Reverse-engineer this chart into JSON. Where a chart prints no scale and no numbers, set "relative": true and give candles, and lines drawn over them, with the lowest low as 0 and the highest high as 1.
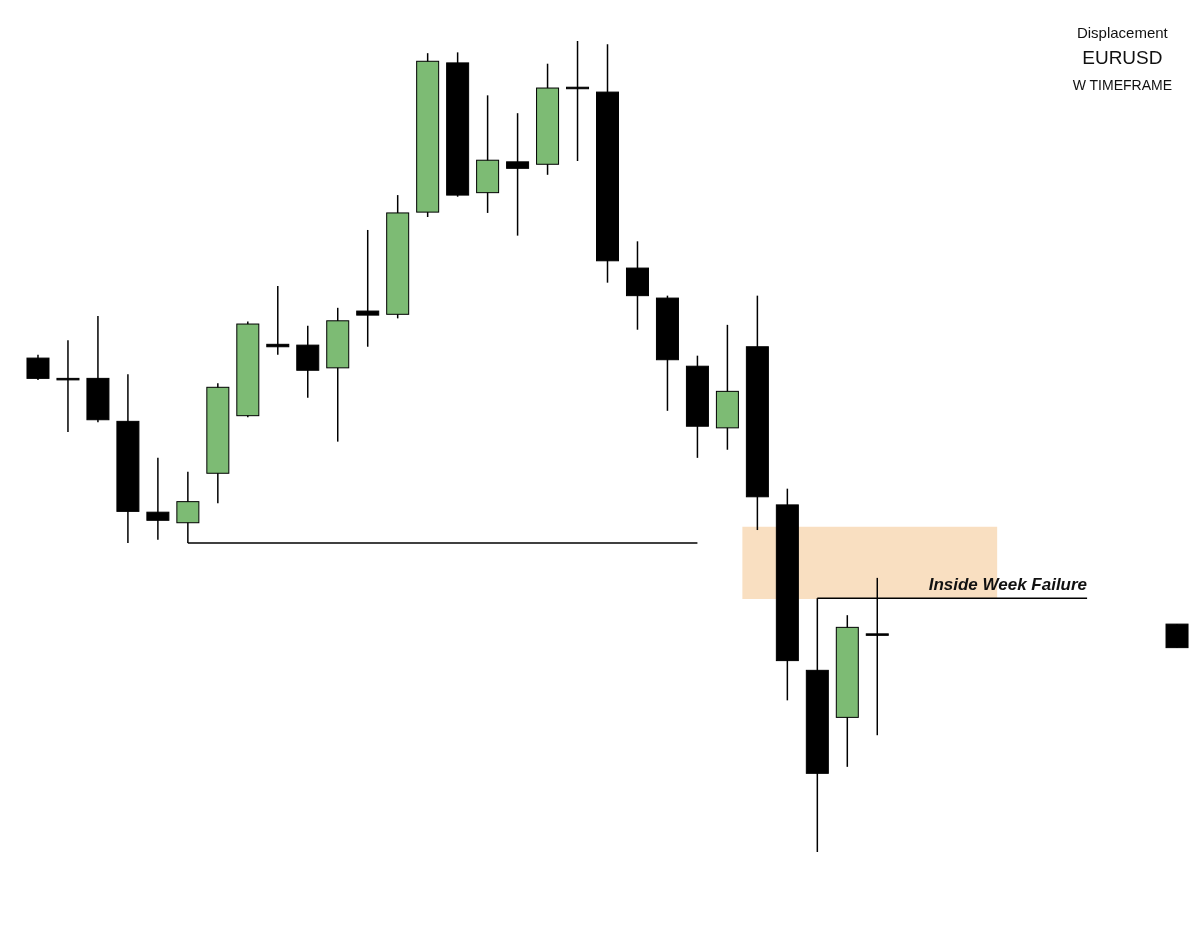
{
  "chart_data": {
    "type": "candlestick",
    "title": "EURUSD",
    "subtitle": "W TIMEFRAME",
    "relative": true,
    "annotations": [
      "Displacement",
      {
        "text": "Inside Week Failure",
        "y": 0.313
      }
    ],
    "categories": [
      null,
      null,
      null,
      null,
      null,
      null,
      null,
      null,
      null,
      null,
      null,
      null,
      null,
      null,
      null,
      null,
      null,
      null,
      null,
      null,
      null,
      null,
      null,
      null,
      null,
      null,
      null,
      null,
      null,
      null,
      null,
      null,
      null,
      null,
      null,
      null,
      null,
      null,
      null
    ],
    "ohlc": [
      [
        0.609,
        0.613,
        0.582,
        0.584
      ],
      [
        0.584,
        0.631,
        0.518,
        0.583
      ],
      [
        0.584,
        0.661,
        0.53,
        0.533
      ],
      [
        0.531,
        0.589,
        0.381,
        0.42
      ],
      [
        0.419,
        0.486,
        0.385,
        0.409
      ],
      [
        0.406,
        0.469,
        0.381,
        0.432
      ],
      [
        0.467,
        0.578,
        0.43,
        0.573
      ],
      [
        0.538,
        0.654,
        0.536,
        0.651
      ],
      [
        0.626,
        0.698,
        0.613,
        0.623
      ],
      [
        0.625,
        0.649,
        0.56,
        0.594
      ],
      [
        0.597,
        0.671,
        0.506,
        0.655
      ],
      [
        0.667,
        0.767,
        0.623,
        0.662
      ],
      [
        0.663,
        0.81,
        0.658,
        0.788
      ],
      [
        0.789,
        0.985,
        0.783,
        0.975
      ],
      [
        0.973,
        0.986,
        0.808,
        0.81
      ],
      [
        0.813,
        0.933,
        0.788,
        0.853
      ],
      [
        0.851,
        0.911,
        0.76,
        0.843
      ],
      [
        0.848,
        0.972,
        0.835,
        0.942
      ],
      [
        0.943,
        1,
        0.852,
        0.942
      ],
      [
        0.937,
        0.996,
        0.702,
        0.729
      ],
      [
        0.72,
        0.753,
        0.644,
        0.686
      ],
      [
        0.683,
        0.686,
        0.544,
        0.607
      ],
      [
        0.599,
        0.612,
        0.486,
        0.525
      ],
      [
        0.523,
        0.65,
        0.496,
        0.568
      ],
      [
        0.623,
        0.686,
        0.397,
        0.438
      ],
      [
        0.428,
        0.448,
        0.187,
        0.236
      ],
      [
        0.224,
        0.313,
        0,
        0.097
      ],
      [
        0.166,
        0.292,
        0.105,
        0.277
      ],
      [
        0.269,
        0.338,
        0.144,
        0.268
      ],
      null,
      null,
      null,
      null,
      null,
      null,
      null,
      null,
      null,
      [
        0.281,
        0.281,
        0.252,
        0.252
      ]
    ],
    "colors": [
      "#000000",
      "#000000",
      "#000000",
      "#000000",
      "#000000",
      "#7dbb74",
      "#7dbb74",
      "#7dbb74",
      "#000000",
      "#000000",
      "#7dbb74",
      "#000000",
      "#7dbb74",
      "#7dbb74",
      "#000000",
      "#7dbb74",
      "#000000",
      "#7dbb74",
      "#000000",
      "#000000",
      "#000000",
      "#000000",
      "#000000",
      "#7dbb74",
      "#000000",
      "#000000",
      "#000000",
      "#7dbb74",
      "#000000",
      null,
      null,
      null,
      null,
      null,
      null,
      null,
      null,
      null,
      "#000000"
    ],
    "series": [
      {
        "type": "line",
        "color": "#000000",
        "values": [
          null,
          null,
          null,
          null,
          null,
          0.381,
          null,
          null,
          null,
          null,
          null,
          null,
          null,
          null,
          null,
          null,
          null,
          null,
          null,
          null,
          null,
          null,
          0.381,
          null,
          null,
          null,
          null,
          null,
          null,
          null,
          null,
          null,
          null,
          null,
          null,
          null,
          null,
          null,
          null
        ]
      },
      {
        "type": "line",
        "color": "#000000",
        "values": [
          null,
          null,
          null,
          null,
          null,
          null,
          null,
          null,
          null,
          null,
          null,
          null,
          null,
          null,
          null,
          null,
          null,
          null,
          null,
          null,
          null,
          null,
          null,
          null,
          null,
          null,
          0.313,
          null,
          null,
          null,
          null,
          null,
          null,
          null,
          null,
          0.313,
          null,
          null,
          null
        ]
      }
    ],
    "bands": [
      {
        "axis": "y",
        "from": 0.312,
        "to": 0.401,
        "color": "#f9dfc1"
      }
    ]
  }
}
